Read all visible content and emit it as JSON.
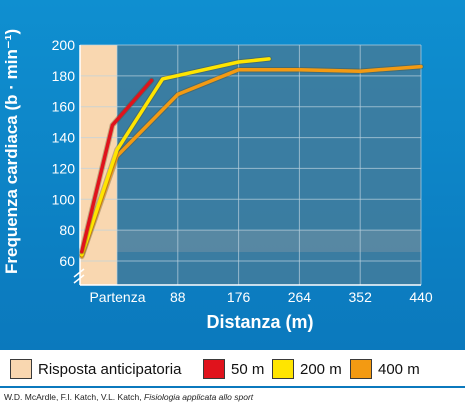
{
  "chart_data": {
    "type": "line",
    "title": "",
    "xlabel": "Distanza (m)",
    "ylabel": "Frequenza cardiaca (b · min⁻¹)",
    "x_ticks": [
      "Partenza",
      "88",
      "176",
      "264",
      "352",
      "440"
    ],
    "y_ticks": [
      "60",
      "80",
      "100",
      "120",
      "140",
      "160",
      "180",
      "200"
    ],
    "ylim": [
      60,
      200
    ],
    "xlim": [
      -40,
      440
    ],
    "grid": true,
    "axis_break_y": true,
    "shaded_region": {
      "label": "Risposta anticipatoria",
      "x_from": -40,
      "x_to": 0,
      "color": "#f9d7b0"
    },
    "series": [
      {
        "name": "50 m",
        "color": "#e0131c",
        "points": [
          [
            -38,
            66
          ],
          [
            -5,
            148
          ],
          [
            50,
            177
          ]
        ]
      },
      {
        "name": "200 m",
        "color": "#ffe500",
        "points": [
          [
            -38,
            64
          ],
          [
            0,
            132
          ],
          [
            66,
            178
          ],
          [
            176,
            189
          ],
          [
            220,
            191
          ]
        ]
      },
      {
        "name": "400 m",
        "color": "#f39a12",
        "points": [
          [
            -38,
            63
          ],
          [
            0,
            128
          ],
          [
            88,
            168
          ],
          [
            176,
            184
          ],
          [
            264,
            184
          ],
          [
            352,
            183
          ],
          [
            440,
            186
          ]
        ]
      }
    ]
  },
  "legend": {
    "items": [
      {
        "label": "Risposta anticipatoria",
        "color": "#f9d7b0"
      },
      {
        "label": "50 m",
        "color": "#e0131c"
      },
      {
        "label": "200 m",
        "color": "#ffe500"
      },
      {
        "label": "400 m",
        "color": "#f39a12"
      }
    ]
  },
  "credit": {
    "authors": "W.D. McArdle, F.I. Katch, V.L. Katch,",
    "book": "Fisiologia applicata allo sport"
  }
}
